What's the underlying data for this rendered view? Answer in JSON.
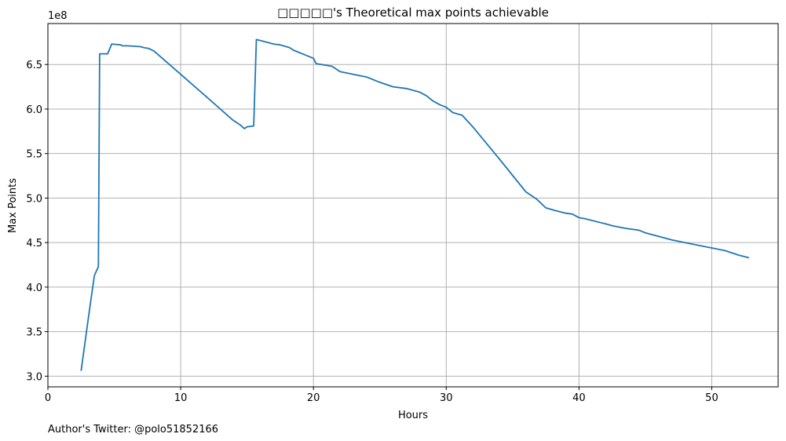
{
  "chart_data": {
    "type": "line",
    "title": "□□□□□'s Theoretical max points achievable",
    "xlabel": "Hours",
    "ylabel": "Max Points",
    "y_offset_label": "1e8",
    "xlim": [
      0,
      55
    ],
    "ylim": [
      2.88,
      6.96
    ],
    "x_ticks": [
      0,
      10,
      20,
      30,
      40,
      50
    ],
    "x_tick_labels": [
      "0",
      "10",
      "20",
      "30",
      "40",
      "50"
    ],
    "y_ticks": [
      3.0,
      3.5,
      4.0,
      4.5,
      5.0,
      5.5,
      6.0,
      6.5
    ],
    "y_tick_labels": [
      "3.0",
      "3.5",
      "4.0",
      "4.5",
      "5.0",
      "5.5",
      "6.0",
      "6.5"
    ],
    "grid": true,
    "series": [
      {
        "color": "#1f77b4",
        "x": [
          2.5,
          3.0,
          3.3,
          3.5,
          3.8,
          3.9,
          4.5,
          4.8,
          5.5,
          5.6,
          6.0,
          7.0,
          7.2,
          7.6,
          8.0,
          10.0,
          12.0,
          13.9,
          14.2,
          14.5,
          14.8,
          15.0,
          15.5,
          15.7,
          16.0,
          17.0,
          17.5,
          18.2,
          18.5,
          19.0,
          20.0,
          20.2,
          21.0,
          21.4,
          21.7,
          22.0,
          23.0,
          24.0,
          25.0,
          26.0,
          27.0,
          28.0,
          28.5,
          29.0,
          29.5,
          30.0,
          30.5,
          31.2,
          32.0,
          34.0,
          36.0,
          36.8,
          37.5,
          38.2,
          39.0,
          39.5,
          40.0,
          40.4,
          42.0,
          42.5,
          43.5,
          44.5,
          45.0,
          46.0,
          47.0,
          48.0,
          49.0,
          50.0,
          51.0,
          52.0,
          52.8
        ],
        "y": [
          3.06,
          3.6,
          3.92,
          4.13,
          4.23,
          6.62,
          6.62,
          6.73,
          6.72,
          6.71,
          6.71,
          6.7,
          6.69,
          6.68,
          6.65,
          6.39,
          6.13,
          5.88,
          5.85,
          5.82,
          5.78,
          5.8,
          5.81,
          6.78,
          6.77,
          6.73,
          6.72,
          6.69,
          6.66,
          6.63,
          6.57,
          6.51,
          6.49,
          6.48,
          6.45,
          6.42,
          6.39,
          6.36,
          6.3,
          6.25,
          6.23,
          6.19,
          6.15,
          6.09,
          6.05,
          6.02,
          5.96,
          5.93,
          5.8,
          5.44,
          5.07,
          4.99,
          4.89,
          4.86,
          4.83,
          4.82,
          4.78,
          4.77,
          4.71,
          4.69,
          4.66,
          4.64,
          4.61,
          4.57,
          4.53,
          4.5,
          4.47,
          4.44,
          4.41,
          4.36,
          4.33
        ]
      }
    ],
    "annotation": "Author's Twitter: @polo51852166"
  }
}
